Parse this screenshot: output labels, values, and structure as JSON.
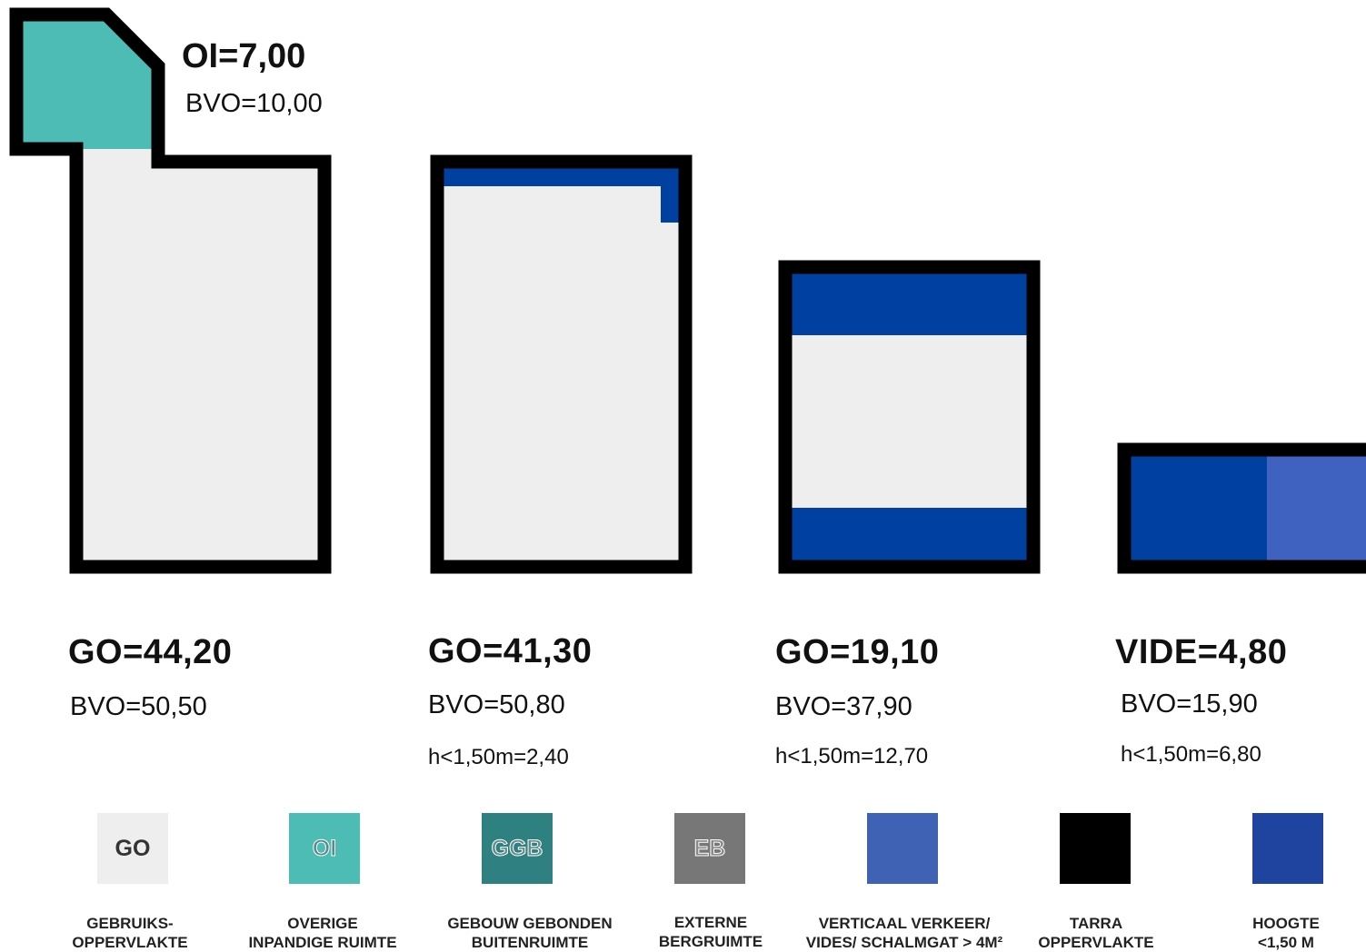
{
  "colors": {
    "go": "#eeeeee",
    "oi": "#4cbcb4",
    "ggb": "#2f8080",
    "eb": "#777777",
    "vertical": "#3f62b5",
    "tarra": "#000000",
    "hoogte": "#1f44a0",
    "blue_band": "#0040a0"
  },
  "plans": [
    {
      "title": "GO=44,20",
      "bvo": "BVO=50,50",
      "h": ""
    },
    {
      "title": "GO=41,30",
      "bvo": "BVO=50,80",
      "h": "h<1,50m=2,40"
    },
    {
      "title": "GO=19,10",
      "bvo": "BVO=37,90",
      "h": "h<1,50m=12,70"
    },
    {
      "title": "VIDE=4,80",
      "bvo": "BVO=15,90",
      "h": "h<1,50m=6,80"
    }
  ],
  "top": {
    "title": "OI=7,00",
    "bvo": "BVO=10,00"
  },
  "legend": [
    {
      "code": "GO",
      "line1": "GEBRUIKS-",
      "line2": "OPPERVLAKTE",
      "icon": "go-swatch"
    },
    {
      "code": "OI",
      "line1": "OVERIGE",
      "line2": "INPANDIGE RUIMTE",
      "icon": "oi-swatch"
    },
    {
      "code": "GGB",
      "line1": "GEBOUW GEBONDEN",
      "line2": "BUITENRUIMTE",
      "icon": "ggb-swatch"
    },
    {
      "code": "EB",
      "line1": "EXTERNE",
      "line2": "BERGRUIMTE",
      "icon": "eb-swatch"
    },
    {
      "code": "",
      "line1": "VERTICAAL VERKEER/",
      "line2": "VIDES/ SCHALMGAT > 4M²",
      "icon": "vertical-swatch"
    },
    {
      "code": "",
      "line1": "TARRA",
      "line2": "OPPERVLAKTE",
      "icon": "tarra-swatch"
    },
    {
      "code": "",
      "line1": "HOOGTE",
      "line2": "<1,50 M",
      "icon": "hoogte-swatch"
    }
  ]
}
